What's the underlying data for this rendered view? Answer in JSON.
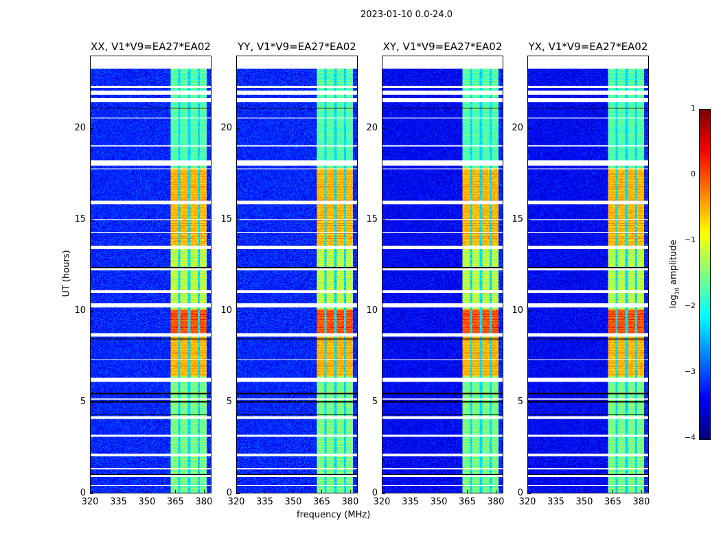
{
  "chart_data": {
    "type": "heatmap",
    "title": "2023-01-10 0.0-24.0",
    "xlabel": "frequency (MHz)",
    "ylabel": "UT (hours)",
    "xlim": [
      320,
      384
    ],
    "ylim": [
      0,
      24
    ],
    "xticks": [
      320,
      335,
      350,
      365,
      380
    ],
    "yticks": [
      0,
      5,
      10,
      15,
      20
    ],
    "panels": [
      {
        "title": "XX, V1*V9=EA27*EA02"
      },
      {
        "title": "YY, V1*V9=EA27*EA02"
      },
      {
        "title": "XY, V1*V9=EA27*EA02"
      },
      {
        "title": "YX, V1*V9=EA27*EA02"
      }
    ],
    "colorbar": {
      "label_main": "log",
      "label_sub": "10",
      "label_tail": " amplitude",
      "range": [
        -4,
        1
      ],
      "ticks": [
        "1",
        "0",
        "−1",
        "−2",
        "−3",
        "−4"
      ],
      "colormap": "jet"
    },
    "background_level": -3.2,
    "signal_subbands_mhz": [
      [
        362.5,
        366.5
      ],
      [
        367.5,
        371.5
      ],
      [
        373,
        377
      ],
      [
        378,
        381.5
      ]
    ],
    "signal_levels_by_hour": [
      {
        "hours": [
          0,
          6.4
        ],
        "level": -1.6
      },
      {
        "hours": [
          6.4,
          8.6
        ],
        "level": -0.6
      },
      {
        "hours": [
          8.8,
          10.1
        ],
        "level": -0.1
      },
      {
        "hours": [
          10.1,
          13.4
        ],
        "level": -1.3
      },
      {
        "hours": [
          13.6,
          17.9
        ],
        "level": -0.6
      },
      {
        "hours": [
          17.9,
          24
        ],
        "level": -1.8
      }
    ],
    "flagged_hours_white": [
      [
        23.35,
        24
      ],
      [
        22.3,
        22.42
      ],
      [
        21.9,
        22.15
      ],
      [
        21.5,
        21.72
      ],
      [
        20.6,
        20.65
      ],
      [
        19.05,
        19.12
      ],
      [
        18.0,
        18.3
      ],
      [
        17.8,
        17.85
      ],
      [
        15.9,
        16.1
      ],
      [
        15.0,
        15.05
      ],
      [
        14.3,
        14.35
      ],
      [
        13.4,
        13.6
      ],
      [
        12.25,
        12.35
      ],
      [
        11.0,
        11.15
      ],
      [
        10.2,
        10.45
      ],
      [
        8.6,
        8.8
      ],
      [
        7.3,
        7.35
      ],
      [
        6.1,
        6.35
      ],
      [
        5.15,
        5.2
      ],
      [
        4.1,
        4.25
      ],
      [
        3.1,
        3.2
      ],
      [
        2.0,
        2.18
      ],
      [
        1.3,
        1.38
      ],
      [
        0.88,
        1.0
      ],
      [
        0.4,
        0.45
      ]
    ],
    "flagged_hours_black": [
      [
        21.15,
        21.2
      ],
      [
        13.55,
        13.6
      ],
      [
        12.35,
        12.42
      ],
      [
        8.45,
        8.5
      ],
      [
        5.45,
        5.5
      ],
      [
        5.0,
        5.05
      ],
      [
        4.3,
        4.35
      ],
      [
        1.0,
        1.05
      ]
    ]
  }
}
